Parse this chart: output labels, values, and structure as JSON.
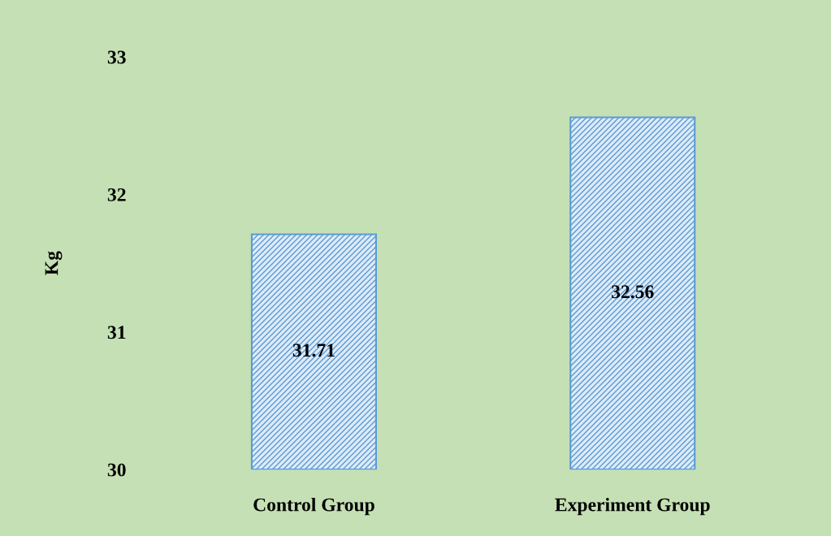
{
  "chart_data": {
    "type": "bar",
    "ylabel": "Kg",
    "categories": [
      "Control Group",
      "Experiment Group"
    ],
    "values": [
      31.71,
      32.56
    ],
    "color": "#5b9bd5",
    "ylim": [
      30,
      33
    ],
    "yticks": [
      30,
      31,
      32,
      33
    ],
    "grid": false,
    "data_labels": true
  }
}
